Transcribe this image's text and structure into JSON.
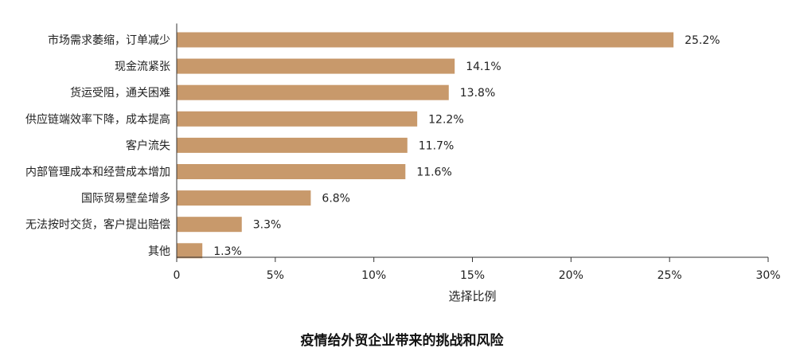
{
  "chart_data": {
    "type": "bar",
    "orientation": "horizontal",
    "title": "疫情给外贸企业带来的挑战和风险",
    "xlabel": "选择比例",
    "ylabel": "",
    "categories": [
      "市场需求萎缩，订单减少",
      "现金流紧张",
      "货运受阻，通关困难",
      "供应链端效率下降，成本提高",
      "客户流失",
      "内部管理成本和经营成本增加",
      "国际贸易壁垒增多",
      "无法按时交货，客户提出赔偿",
      "其他"
    ],
    "values": [
      25.2,
      14.1,
      13.8,
      12.2,
      11.7,
      11.6,
      6.8,
      3.3,
      1.3
    ],
    "value_labels": [
      "25.2%",
      "14.1%",
      "13.8%",
      "12.2%",
      "11.7%",
      "11.6%",
      "6.8%",
      "3.3%",
      "1.3%"
    ],
    "xlim": [
      0,
      30
    ],
    "xticks": [
      0,
      5,
      10,
      15,
      20,
      25,
      30
    ],
    "xtick_labels": [
      "0",
      "5%",
      "10%",
      "15%",
      "20%",
      "25%",
      "30%"
    ],
    "bar_color": "#c8996b",
    "grid": false,
    "legend": "none"
  }
}
